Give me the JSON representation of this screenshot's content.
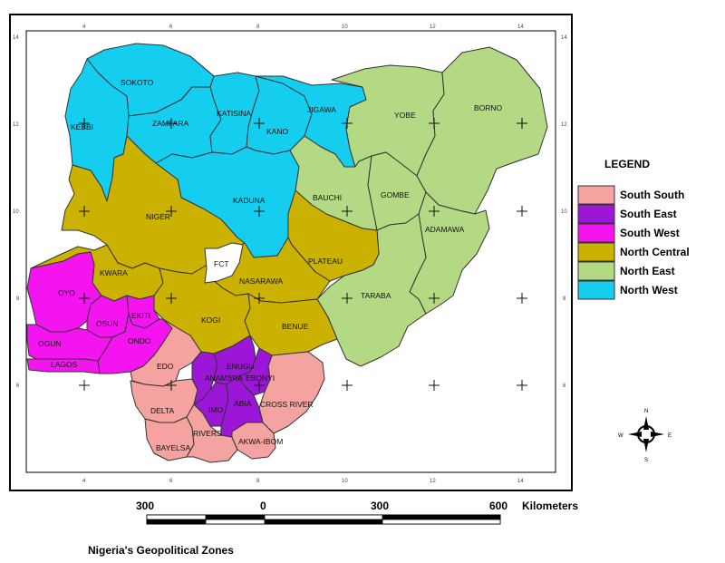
{
  "zones": {
    "south_south": {
      "label": "South South",
      "color": "#f4a3a0"
    },
    "south_east": {
      "label": "South East",
      "color": "#9b16d6"
    },
    "south_west": {
      "label": "South West",
      "color": "#f414f0"
    },
    "north_central": {
      "label": "North Central",
      "color": "#ccb200"
    },
    "north_east": {
      "label": "North East",
      "color": "#b4d985"
    },
    "north_west": {
      "label": "North West",
      "color": "#14cdef"
    },
    "fct": {
      "color": "#ffffff"
    }
  },
  "legend": {
    "title": "LEGEND",
    "order": [
      "south_south",
      "south_east",
      "south_west",
      "north_central",
      "north_east",
      "north_west"
    ]
  },
  "states": {
    "sokoto": "SOKOTO",
    "kebbi": "KEBBI",
    "zamfara": "ZAMFARA",
    "katsina": "KATISINA",
    "kano": "KANO",
    "jigawa": "JIGAWA",
    "kaduna": "KADUNA",
    "yobe": "YOBE",
    "borno": "BORNO",
    "bauchi": "BAUCHI",
    "gombe": "GOMBE",
    "adamawa": "ADAMAWA",
    "taraba": "TARABA",
    "niger": "NIGER",
    "fct": "FCT",
    "plateau": "PLATEAU",
    "nasarawa": "NASARAWA",
    "kwara": "KWARA",
    "kogi": "KOGI",
    "benue": "BENUE",
    "oyo": "OYO",
    "osun": "OSUN",
    "ekiti": "EKITI",
    "ondo": "ONDO",
    "ogun": "OGUN",
    "lagos": "LAGOS",
    "edo": "EDO",
    "delta": "DELTA",
    "bayelsa": "BAYELSA",
    "rivers": "RIVERS",
    "akwa_ibom": "AKWA-IBOM",
    "cross_river": "CROSS RIVER",
    "anambra": "ANAMBRA",
    "enugu": "ENUGU",
    "ebonyi": "EBONYI",
    "imo": "IMO",
    "abia": "ABIA"
  },
  "axes": {
    "x_ticks": [
      "4",
      "6",
      "8",
      "10",
      "12",
      "14"
    ],
    "y_ticks": [
      "14",
      "12",
      "10",
      "8",
      "6"
    ]
  },
  "scale_bar": {
    "left": "300",
    "mid": "0",
    "right": "300",
    "end": "600",
    "unit": "Kilometers"
  },
  "compass": {
    "n": "N",
    "s": "S",
    "e": "E",
    "w": "W"
  },
  "caption": "Nigeria's Geopolitical Zones"
}
